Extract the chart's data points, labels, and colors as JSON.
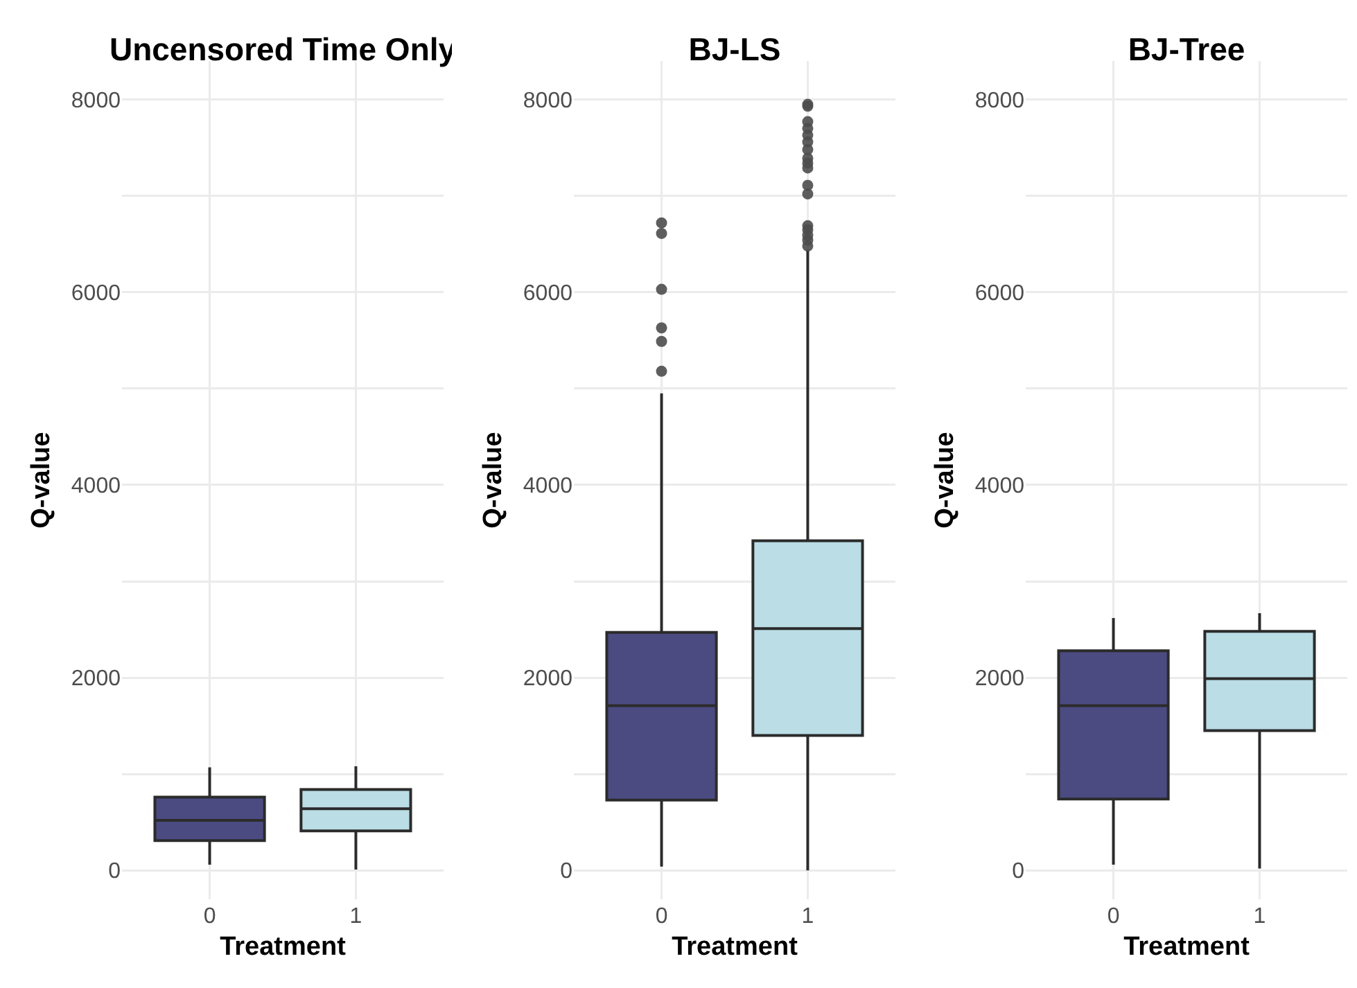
{
  "chart_data": [
    {
      "type": "box",
      "title": "Uncensored Time Only",
      "xlabel": "Treatment",
      "ylabel": "Q-value",
      "categories": [
        "0",
        "1"
      ],
      "colors": [
        "#4b4b82",
        "#badde6"
      ],
      "boxes": [
        {
          "low": 60,
          "q1": 310,
          "median": 520,
          "q3": 760,
          "high": 1070
        },
        {
          "low": 10,
          "q1": 410,
          "median": 640,
          "q3": 840,
          "high": 1080
        }
      ],
      "ylim": [
        -300,
        8400
      ],
      "yticks": [
        0,
        {
          "value": 1000,
          "label": null
        },
        2000,
        {
          "value": 3000,
          "label": null
        },
        4000,
        {
          "value": 5000,
          "label": null
        },
        6000,
        {
          "value": 7000,
          "label": null
        },
        8000
      ],
      "grid": true
    },
    {
      "type": "box",
      "title": "BJ-LS",
      "xlabel": "Treatment",
      "ylabel": "Q-value",
      "categories": [
        "0",
        "1"
      ],
      "colors": [
        "#4b4b82",
        "#badde6"
      ],
      "boxes": [
        {
          "low": 40,
          "q1": 730,
          "median": 1710,
          "q3": 2470,
          "high": 4950,
          "outliers": [
            5180,
            5490,
            5630,
            6030,
            6610,
            6720
          ]
        },
        {
          "low": 0,
          "q1": 1400,
          "median": 2510,
          "q3": 3420,
          "high": 6440,
          "outliers": [
            6480,
            6540,
            6590,
            6650,
            6690,
            7020,
            7110,
            7290,
            7340,
            7390,
            7480,
            7560,
            7630,
            7700,
            7770,
            7930,
            7950
          ]
        }
      ],
      "ylim": [
        -300,
        8400
      ],
      "yticks": [
        0,
        {
          "value": 1000,
          "label": null
        },
        2000,
        {
          "value": 3000,
          "label": null
        },
        4000,
        {
          "value": 5000,
          "label": null
        },
        6000,
        {
          "value": 7000,
          "label": null
        },
        8000
      ],
      "grid": true
    },
    {
      "type": "box",
      "title": "BJ-Tree",
      "xlabel": "Treatment",
      "ylabel": "Q-value",
      "categories": [
        "0",
        "1"
      ],
      "colors": [
        "#4b4b82",
        "#badde6"
      ],
      "boxes": [
        {
          "low": 60,
          "q1": 740,
          "median": 1710,
          "q3": 2280,
          "high": 2620
        },
        {
          "low": 20,
          "q1": 1450,
          "median": 1990,
          "q3": 2480,
          "high": 2670
        }
      ],
      "ylim": [
        -300,
        8400
      ],
      "yticks": [
        0,
        {
          "value": 1000,
          "label": null
        },
        2000,
        {
          "value": 3000,
          "label": null
        },
        4000,
        {
          "value": 5000,
          "label": null
        },
        6000,
        {
          "value": 7000,
          "label": null
        },
        8000
      ],
      "grid": true
    }
  ]
}
